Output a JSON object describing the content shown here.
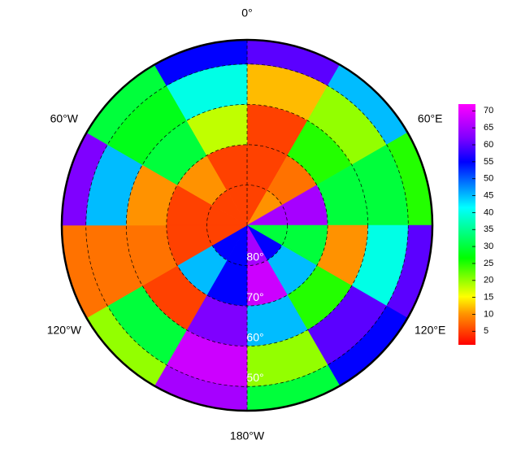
{
  "map": {
    "meridian_labels": [
      {
        "value": 0,
        "label": "0°"
      },
      {
        "value": 60,
        "label": "60°E"
      },
      {
        "value": 120,
        "label": "120°E"
      },
      {
        "value": 180,
        "label": "180°W"
      },
      {
        "value": 240,
        "label": "120°W"
      },
      {
        "value": 300,
        "label": "60°W"
      }
    ],
    "parallel_labels": [
      {
        "value": -80,
        "label": "80°"
      },
      {
        "value": -70,
        "label": "70°"
      },
      {
        "value": -60,
        "label": "60°"
      },
      {
        "value": -50,
        "label": "50°"
      }
    ],
    "boundary_lat": -44,
    "field": {
      "lat_edges": [
        -90,
        -80,
        -70,
        -60,
        -50,
        -44
      ],
      "lon_edges": [
        0,
        30,
        60,
        90,
        120,
        150,
        180,
        210,
        240,
        270,
        300,
        330,
        360
      ],
      "values": [
        [
          5,
          10,
          65,
          30,
          55,
          65,
          55,
          55,
          5,
          5,
          5,
          5
        ],
        [
          5,
          8,
          65,
          30,
          45,
          68,
          55,
          45,
          5,
          5,
          10,
          5
        ],
        [
          5,
          25,
          30,
          10,
          25,
          45,
          62,
          5,
          8,
          10,
          30,
          18
        ],
        [
          12,
          20,
          30,
          40,
          60,
          20,
          68,
          30,
          8,
          45,
          28,
          40
        ],
        [
          60,
          45,
          25,
          60,
          55,
          30,
          65,
          20,
          8,
          62,
          30,
          55
        ]
      ]
    },
    "colorbar": {
      "clim": [
        1,
        72
      ],
      "ticks": [
        5,
        10,
        15,
        20,
        25,
        30,
        35,
        40,
        45,
        50,
        55,
        60,
        65,
        70
      ]
    }
  }
}
